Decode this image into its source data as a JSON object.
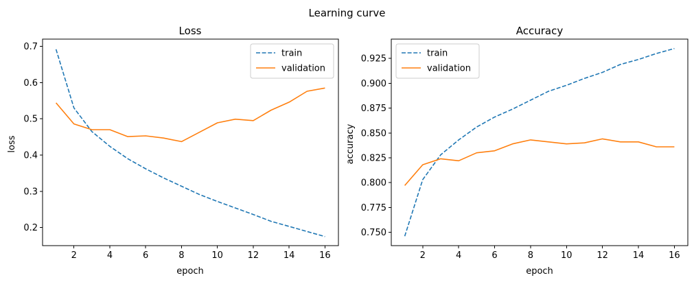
{
  "figure": {
    "suptitle": "Learning curve"
  },
  "chart_data": [
    {
      "type": "line",
      "title": "Loss",
      "xlabel": "epoch",
      "ylabel": "loss",
      "xlim": [
        0.25,
        16.75
      ],
      "ylim": [
        0.15,
        0.72
      ],
      "xticks": [
        2,
        4,
        6,
        8,
        10,
        12,
        14,
        16
      ],
      "xtick_labels": [
        "2",
        "4",
        "6",
        "8",
        "10",
        "12",
        "14",
        "16"
      ],
      "yticks": [
        0.2,
        0.3,
        0.4,
        0.5,
        0.6,
        0.7
      ],
      "ytick_labels": [
        "0.2",
        "0.3",
        "0.4",
        "0.5",
        "0.6",
        "0.7"
      ],
      "x": [
        1,
        2,
        3,
        4,
        5,
        6,
        7,
        8,
        9,
        10,
        11,
        12,
        13,
        14,
        15,
        16
      ],
      "series": [
        {
          "name": "train",
          "color": "#1f77b4",
          "dashed": true,
          "values": [
            0.692,
            0.53,
            0.465,
            0.424,
            0.39,
            0.362,
            0.337,
            0.314,
            0.291,
            0.272,
            0.254,
            0.236,
            0.217,
            0.203,
            0.189,
            0.175
          ]
        },
        {
          "name": "validation",
          "color": "#ff7f0e",
          "dashed": false,
          "values": [
            0.544,
            0.486,
            0.47,
            0.47,
            0.451,
            0.453,
            0.447,
            0.437,
            0.463,
            0.489,
            0.499,
            0.495,
            0.524,
            0.546,
            0.576,
            0.585
          ]
        }
      ],
      "legend": "top-right"
    },
    {
      "type": "line",
      "title": "Accuracy",
      "xlabel": "epoch",
      "ylabel": "accuracy",
      "xlim": [
        0.25,
        16.75
      ],
      "ylim": [
        0.7365,
        0.9445
      ],
      "xticks": [
        2,
        4,
        6,
        8,
        10,
        12,
        14,
        16
      ],
      "xtick_labels": [
        "2",
        "4",
        "6",
        "8",
        "10",
        "12",
        "14",
        "16"
      ],
      "yticks": [
        0.75,
        0.775,
        0.8,
        0.825,
        0.85,
        0.875,
        0.9,
        0.925
      ],
      "ytick_labels": [
        "0.750",
        "0.775",
        "0.800",
        "0.825",
        "0.850",
        "0.875",
        "0.900",
        "0.925"
      ],
      "x": [
        1,
        2,
        3,
        4,
        5,
        6,
        7,
        8,
        9,
        10,
        11,
        12,
        13,
        14,
        15,
        16
      ],
      "series": [
        {
          "name": "train",
          "color": "#1f77b4",
          "dashed": true,
          "values": [
            0.746,
            0.803,
            0.828,
            0.843,
            0.856,
            0.866,
            0.874,
            0.883,
            0.892,
            0.898,
            0.905,
            0.911,
            0.919,
            0.924,
            0.93,
            0.935
          ]
        },
        {
          "name": "validation",
          "color": "#ff7f0e",
          "dashed": false,
          "values": [
            0.797,
            0.818,
            0.824,
            0.822,
            0.83,
            0.832,
            0.839,
            0.843,
            0.841,
            0.839,
            0.84,
            0.844,
            0.841,
            0.841,
            0.836,
            0.836
          ]
        }
      ],
      "legend": "top-left"
    }
  ]
}
